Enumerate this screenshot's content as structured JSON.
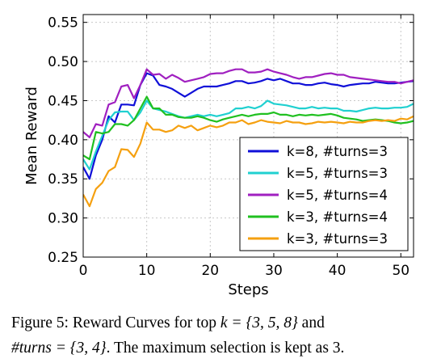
{
  "chart_data": {
    "type": "line",
    "xlabel": "Steps",
    "ylabel": "Mean Reward",
    "xlim": [
      0,
      52
    ],
    "ylim": [
      0.25,
      0.56
    ],
    "xticks": [
      0,
      10,
      20,
      30,
      40,
      50
    ],
    "yticks": [
      0.25,
      0.3,
      0.35,
      0.4,
      0.45,
      0.5,
      0.55
    ],
    "xtick_labels": [
      "0",
      "10",
      "20",
      "30",
      "40",
      "50"
    ],
    "ytick_labels": [
      "0.25",
      "0.30",
      "0.35",
      "0.40",
      "0.45",
      "0.50",
      "0.55"
    ],
    "grid": true,
    "legend_position": "lower-right",
    "x": [
      0,
      1,
      2,
      3,
      4,
      5,
      6,
      7,
      8,
      9,
      10,
      11,
      12,
      13,
      14,
      15,
      16,
      17,
      18,
      19,
      20,
      21,
      22,
      23,
      24,
      25,
      26,
      27,
      28,
      29,
      30,
      31,
      32,
      33,
      34,
      35,
      36,
      37,
      38,
      39,
      40,
      41,
      42,
      43,
      44,
      45,
      46,
      47,
      48,
      49,
      50,
      51,
      52
    ],
    "series": [
      {
        "name": "k=8, #turns=3",
        "color": "#1010d8",
        "values": [
          0.365,
          0.35,
          0.38,
          0.4,
          0.43,
          0.422,
          0.445,
          0.445,
          0.444,
          0.47,
          0.485,
          0.482,
          0.47,
          0.468,
          0.465,
          0.46,
          0.455,
          0.46,
          0.465,
          0.468,
          0.468,
          0.468,
          0.47,
          0.472,
          0.475,
          0.475,
          0.472,
          0.473,
          0.475,
          0.478,
          0.476,
          0.478,
          0.475,
          0.472,
          0.472,
          0.47,
          0.47,
          0.472,
          0.473,
          0.471,
          0.47,
          0.468,
          0.47,
          0.471,
          0.472,
          0.472,
          0.474,
          0.473,
          0.472,
          0.472,
          0.473,
          0.474,
          0.475
        ]
      },
      {
        "name": "k=5, #turns=3",
        "color": "#20d0d0",
        "values": [
          0.375,
          0.362,
          0.385,
          0.405,
          0.425,
          0.435,
          0.436,
          0.436,
          0.425,
          0.435,
          0.45,
          0.44,
          0.438,
          0.436,
          0.433,
          0.43,
          0.428,
          0.43,
          0.432,
          0.43,
          0.432,
          0.43,
          0.432,
          0.434,
          0.44,
          0.44,
          0.442,
          0.44,
          0.443,
          0.45,
          0.446,
          0.445,
          0.444,
          0.442,
          0.44,
          0.44,
          0.442,
          0.44,
          0.441,
          0.44,
          0.44,
          0.437,
          0.437,
          0.436,
          0.438,
          0.44,
          0.441,
          0.44,
          0.44,
          0.441,
          0.441,
          0.442,
          0.446
        ]
      },
      {
        "name": "k=5, #turns=4",
        "color": "#a020c0",
        "values": [
          0.41,
          0.403,
          0.42,
          0.418,
          0.445,
          0.448,
          0.468,
          0.47,
          0.453,
          0.47,
          0.49,
          0.483,
          0.484,
          0.478,
          0.483,
          0.479,
          0.474,
          0.476,
          0.478,
          0.48,
          0.484,
          0.485,
          0.485,
          0.488,
          0.49,
          0.49,
          0.486,
          0.486,
          0.487,
          0.49,
          0.487,
          0.485,
          0.483,
          0.48,
          0.478,
          0.48,
          0.48,
          0.482,
          0.484,
          0.485,
          0.483,
          0.483,
          0.48,
          0.479,
          0.478,
          0.477,
          0.476,
          0.475,
          0.474,
          0.474,
          0.472,
          0.474,
          0.476
        ]
      },
      {
        "name": "k=3, #turns=4",
        "color": "#20c020",
        "values": [
          0.38,
          0.375,
          0.41,
          0.408,
          0.41,
          0.42,
          0.42,
          0.418,
          0.425,
          0.44,
          0.455,
          0.44,
          0.44,
          0.432,
          0.432,
          0.429,
          0.428,
          0.428,
          0.43,
          0.428,
          0.425,
          0.423,
          0.426,
          0.428,
          0.43,
          0.432,
          0.43,
          0.432,
          0.433,
          0.433,
          0.435,
          0.432,
          0.432,
          0.43,
          0.432,
          0.431,
          0.432,
          0.431,
          0.432,
          0.433,
          0.431,
          0.428,
          0.427,
          0.426,
          0.424,
          0.425,
          0.426,
          0.425,
          0.424,
          0.422,
          0.421,
          0.422,
          0.424
        ]
      },
      {
        "name": "k=3, #turns=3",
        "color": "#f5a010",
        "values": [
          0.33,
          0.315,
          0.337,
          0.345,
          0.36,
          0.365,
          0.388,
          0.387,
          0.378,
          0.395,
          0.422,
          0.413,
          0.413,
          0.41,
          0.412,
          0.418,
          0.415,
          0.418,
          0.412,
          0.415,
          0.418,
          0.416,
          0.418,
          0.422,
          0.422,
          0.425,
          0.42,
          0.422,
          0.425,
          0.423,
          0.422,
          0.421,
          0.424,
          0.422,
          0.422,
          0.42,
          0.421,
          0.423,
          0.422,
          0.423,
          0.422,
          0.421,
          0.423,
          0.422,
          0.422,
          0.424,
          0.425,
          0.424,
          0.425,
          0.424,
          0.427,
          0.426,
          0.43
        ]
      }
    ]
  },
  "caption": {
    "line1_pre": "Figure 5: Reward Curves for top ",
    "line1_math": "k = {3, 5, 8}",
    "line1_post": " and",
    "line2_math": "#turns = {3, 4}",
    "line2_post": ". The maximum selection is kept as 3."
  }
}
